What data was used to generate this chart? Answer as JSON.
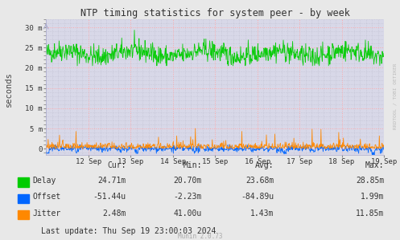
{
  "title": "NTP timing statistics for system peer - by week",
  "ylabel": "seconds",
  "background_color": "#e8e8e8",
  "plot_background_color": "#d8d8e8",
  "grid_color_major": "#ffaaaa",
  "grid_color_minor": "#bbbbcc",
  "yticks": [
    0,
    5,
    10,
    15,
    20,
    25,
    30
  ],
  "ytick_labels": [
    "0",
    "5 m",
    "10 m",
    "15 m",
    "20 m",
    "25 m",
    "30 m"
  ],
  "ylim": [
    -1.5,
    32
  ],
  "xtick_labels": [
    "12 Sep",
    "13 Sep",
    "14 Sep",
    "15 Sep",
    "16 Sep",
    "17 Sep",
    "18 Sep",
    "19 Sep"
  ],
  "delay_color": "#00cc00",
  "offset_color": "#0066ff",
  "jitter_color": "#ff8800",
  "legend_items": [
    "Delay",
    "Offset",
    "Jitter"
  ],
  "stats_labels": [
    "Cur:",
    "Min:",
    "Avg:",
    "Max:"
  ],
  "delay_stats": [
    "24.71m",
    "20.70m",
    "23.68m",
    "28.85m"
  ],
  "offset_stats": [
    "-51.44u",
    "-2.23m",
    "-84.89u",
    "1.99m"
  ],
  "jitter_stats": [
    "2.48m",
    "41.00u",
    "1.43m",
    "11.85m"
  ],
  "last_update": "Last update: Thu Sep 19 23:00:03 2024",
  "munin_version": "Munin 2.0.73",
  "watermark": "RRDTOOL / TOBI OETIKER"
}
